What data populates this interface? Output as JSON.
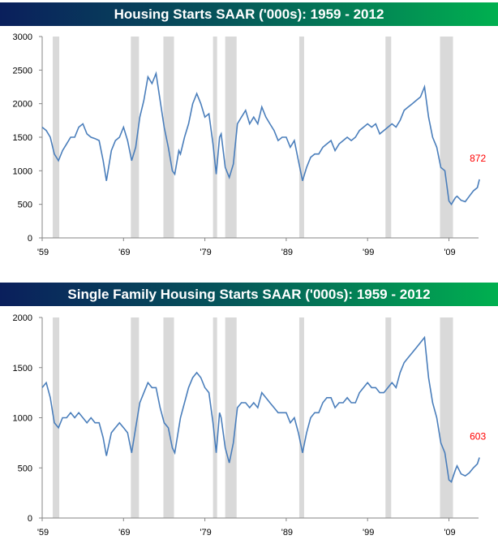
{
  "chart_data": [
    {
      "type": "line",
      "title": "Housing Starts SAAR ('000s): 1959 - 2012",
      "ylim": [
        0,
        3000
      ],
      "yticks": [
        0,
        500,
        1000,
        1500,
        2000,
        2500,
        3000
      ],
      "xticks": [
        "'59",
        "'69",
        "'79",
        "'89",
        "'99",
        "'09"
      ],
      "xtick_years": [
        1959,
        1969,
        1979,
        1989,
        1999,
        2009
      ],
      "xlim": [
        1959,
        2012.85
      ],
      "annotation": "872",
      "series_color": "#4a7ebb",
      "annotation_color": "#ff0000",
      "recessions": [
        [
          1960.3,
          1961.1
        ],
        [
          1969.9,
          1970.9
        ],
        [
          1973.9,
          1975.2
        ],
        [
          1980.0,
          1980.5
        ],
        [
          1981.5,
          1982.9
        ],
        [
          1990.6,
          1991.2
        ],
        [
          2001.2,
          2001.9
        ],
        [
          2007.9,
          2009.5
        ]
      ],
      "x": [
        1959,
        1959.5,
        1960,
        1960.5,
        1961,
        1961.5,
        1962,
        1962.5,
        1963,
        1963.5,
        1964,
        1964.5,
        1965,
        1965.5,
        1966,
        1966.5,
        1966.9,
        1967.5,
        1968,
        1968.5,
        1969,
        1969.5,
        1970,
        1970.5,
        1971,
        1971.5,
        1972,
        1972.5,
        1973,
        1973.5,
        1974,
        1974.5,
        1975,
        1975.3,
        1975.8,
        1976,
        1976.5,
        1977,
        1977.5,
        1978,
        1978.5,
        1979,
        1979.5,
        1980,
        1980.4,
        1980.8,
        1981,
        1981.5,
        1982,
        1982.5,
        1983,
        1983.5,
        1984,
        1984.5,
        1985,
        1985.5,
        1986,
        1986.5,
        1987,
        1987.5,
        1988,
        1988.5,
        1989,
        1989.5,
        1990,
        1990.5,
        1991,
        1991.5,
        1992,
        1992.5,
        1993,
        1993.5,
        1994,
        1994.5,
        1995,
        1995.5,
        1996,
        1996.5,
        1997,
        1997.5,
        1998,
        1998.5,
        1999,
        1999.5,
        2000,
        2000.5,
        2001,
        2001.5,
        2002,
        2002.5,
        2003,
        2003.5,
        2004,
        2004.5,
        2005,
        2005.5,
        2006,
        2006.5,
        2007,
        2007.5,
        2008,
        2008.5,
        2009,
        2009.3,
        2009.8,
        2010,
        2010.5,
        2011,
        2011.5,
        2012,
        2012.5,
        2012.75
      ],
      "values": [
        1650,
        1600,
        1500,
        1250,
        1150,
        1300,
        1400,
        1500,
        1500,
        1650,
        1700,
        1550,
        1500,
        1480,
        1450,
        1150,
        850,
        1300,
        1450,
        1500,
        1650,
        1450,
        1150,
        1350,
        1800,
        2050,
        2400,
        2300,
        2450,
        2050,
        1650,
        1350,
        1000,
        950,
        1300,
        1250,
        1500,
        1700,
        2000,
        2150,
        2000,
        1800,
        1850,
        1400,
        950,
        1500,
        1550,
        1050,
        900,
        1100,
        1700,
        1800,
        1900,
        1700,
        1800,
        1700,
        1950,
        1800,
        1700,
        1600,
        1450,
        1500,
        1500,
        1350,
        1450,
        1150,
        850,
        1050,
        1200,
        1250,
        1250,
        1350,
        1400,
        1450,
        1300,
        1400,
        1450,
        1500,
        1450,
        1500,
        1600,
        1650,
        1700,
        1650,
        1700,
        1550,
        1600,
        1650,
        1700,
        1650,
        1750,
        1900,
        1950,
        2000,
        2050,
        2100,
        2250,
        1800,
        1500,
        1350,
        1050,
        1000,
        550,
        500,
        600,
        620,
        560,
        540,
        620,
        700,
        750,
        872
      ]
    },
    {
      "type": "line",
      "title": "Single Family Housing Starts SAAR ('000s): 1959 - 2012",
      "ylim": [
        0,
        2000
      ],
      "yticks": [
        0,
        500,
        1000,
        1500,
        2000
      ],
      "xticks": [
        "'59",
        "'69",
        "'79",
        "'89",
        "'99",
        "'09"
      ],
      "xtick_years": [
        1959,
        1969,
        1979,
        1989,
        1999,
        2009
      ],
      "xlim": [
        1959,
        2012.85
      ],
      "annotation": "603",
      "series_color": "#4a7ebb",
      "annotation_color": "#ff0000",
      "recessions": [
        [
          1960.3,
          1961.1
        ],
        [
          1969.9,
          1970.9
        ],
        [
          1973.9,
          1975.2
        ],
        [
          1980.0,
          1980.5
        ],
        [
          1981.5,
          1982.9
        ],
        [
          1990.6,
          1991.2
        ],
        [
          2001.2,
          2001.9
        ],
        [
          2007.9,
          2009.5
        ]
      ],
      "x": [
        1959,
        1959.5,
        1960,
        1960.5,
        1961,
        1961.5,
        1962,
        1962.5,
        1963,
        1963.5,
        1964,
        1964.5,
        1965,
        1965.5,
        1966,
        1966.5,
        1966.9,
        1967.5,
        1968,
        1968.5,
        1969,
        1969.5,
        1970,
        1970.5,
        1971,
        1971.5,
        1972,
        1972.5,
        1973,
        1973.5,
        1974,
        1974.5,
        1975,
        1975.3,
        1975.8,
        1976,
        1976.5,
        1977,
        1977.5,
        1978,
        1978.5,
        1979,
        1979.5,
        1980,
        1980.4,
        1980.8,
        1981,
        1981.5,
        1982,
        1982.5,
        1983,
        1983.5,
        1984,
        1984.5,
        1985,
        1985.5,
        1986,
        1986.5,
        1987,
        1987.5,
        1988,
        1988.5,
        1989,
        1989.5,
        1990,
        1990.5,
        1991,
        1991.5,
        1992,
        1992.5,
        1993,
        1993.5,
        1994,
        1994.5,
        1995,
        1995.5,
        1996,
        1996.5,
        1997,
        1997.5,
        1998,
        1998.5,
        1999,
        1999.5,
        2000,
        2000.5,
        2001,
        2001.5,
        2002,
        2002.5,
        2003,
        2003.5,
        2004,
        2004.5,
        2005,
        2005.5,
        2006,
        2006.5,
        2007,
        2007.5,
        2008,
        2008.5,
        2009,
        2009.3,
        2009.8,
        2010,
        2010.5,
        2011,
        2011.5,
        2012,
        2012.5,
        2012.75
      ],
      "values": [
        1300,
        1350,
        1200,
        950,
        900,
        1000,
        1000,
        1050,
        1000,
        1050,
        1000,
        950,
        1000,
        950,
        950,
        800,
        620,
        850,
        900,
        950,
        900,
        850,
        650,
        900,
        1150,
        1250,
        1350,
        1300,
        1300,
        1100,
        950,
        900,
        700,
        650,
        900,
        1000,
        1150,
        1300,
        1400,
        1450,
        1400,
        1300,
        1250,
        950,
        650,
        1050,
        1000,
        700,
        550,
        750,
        1100,
        1150,
        1150,
        1100,
        1150,
        1100,
        1250,
        1200,
        1150,
        1100,
        1050,
        1050,
        1050,
        950,
        1000,
        850,
        650,
        850,
        1000,
        1050,
        1050,
        1150,
        1200,
        1200,
        1100,
        1150,
        1150,
        1200,
        1150,
        1150,
        1250,
        1300,
        1350,
        1300,
        1300,
        1250,
        1250,
        1300,
        1350,
        1300,
        1450,
        1550,
        1600,
        1650,
        1700,
        1750,
        1800,
        1400,
        1150,
        1000,
        750,
        650,
        380,
        360,
        480,
        520,
        440,
        420,
        450,
        500,
        540,
        603
      ]
    }
  ]
}
